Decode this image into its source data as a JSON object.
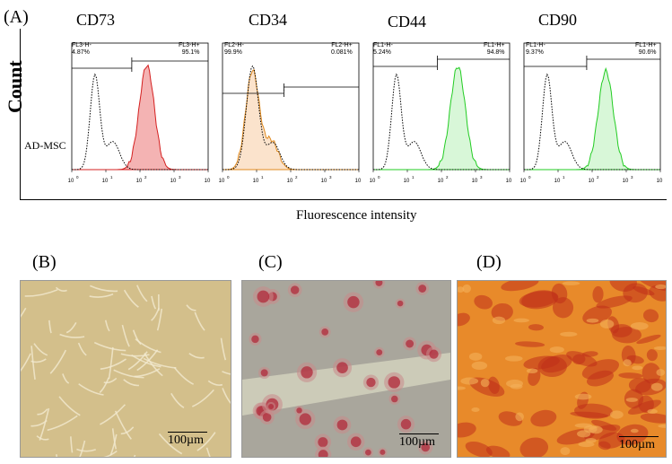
{
  "panel_a": {
    "letter": "(A)",
    "y_label": "Count",
    "x_label": "Fluorescence intensity",
    "sample_label": "AD-MSC",
    "zero_label": "0",
    "tick_labels": [
      "10",
      "10",
      "10",
      "10",
      "10"
    ],
    "tick_exponents": [
      "0",
      "1",
      "2",
      "3",
      "4"
    ],
    "plots": [
      {
        "marker": "CD73",
        "left_gate": "FL3-H-",
        "left_pct": "4.87%",
        "right_gate": "FL3-H+",
        "right_pct": "95.1%",
        "color": "#d42020",
        "fill": "#f4b3b3"
      },
      {
        "marker": "CD34",
        "left_gate": "FL2-H-",
        "left_pct": "99.9%",
        "right_gate": "FL2-H+",
        "right_pct": "0.081%",
        "color": "#e08a1e",
        "fill": "#fbe3cc"
      },
      {
        "marker": "CD44",
        "left_gate": "FL1-H-",
        "left_pct": "5.24%",
        "right_gate": "FL1-H+",
        "right_pct": "94.8%",
        "color": "#22cc22",
        "fill": "#d8f7d8"
      },
      {
        "marker": "CD90",
        "left_gate": "FL1-H-",
        "left_pct": "9.37%",
        "right_gate": "FL1-H+",
        "right_pct": "90.6%",
        "color": "#22cc22",
        "fill": "#d8f7d8"
      }
    ]
  },
  "panel_b": {
    "letter": "(B)",
    "scale": "100µm",
    "tint": "#c9b27c"
  },
  "panel_c": {
    "letter": "(C)",
    "scale": "100µm",
    "tint": "#a9a69c"
  },
  "panel_d": {
    "letter": "(D)",
    "scale": "100µm",
    "tint": "#e88a2a"
  }
}
